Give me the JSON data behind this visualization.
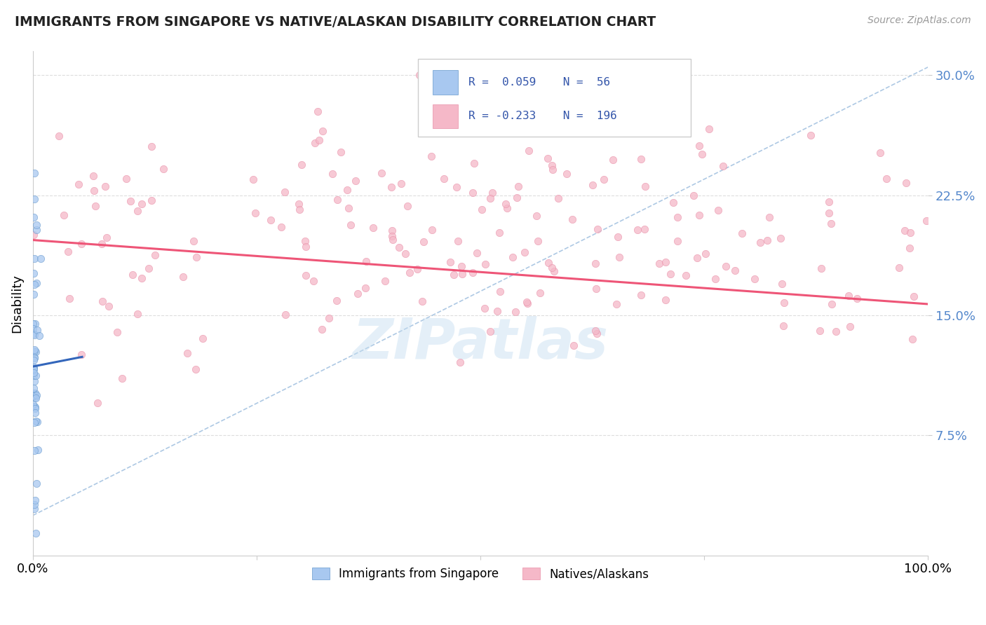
{
  "title": "IMMIGRANTS FROM SINGAPORE VS NATIVE/ALASKAN DISABILITY CORRELATION CHART",
  "source": "Source: ZipAtlas.com",
  "ylabel": "Disability",
  "xlim": [
    0.0,
    1.0
  ],
  "ylim": [
    0.0,
    0.315
  ],
  "yticks": [
    0.075,
    0.15,
    0.225,
    0.3
  ],
  "ytick_labels": [
    "7.5%",
    "15.0%",
    "22.5%",
    "30.0%"
  ],
  "xtick_labels": [
    "0.0%",
    "100.0%"
  ],
  "series_blue": {
    "name": "Immigrants from Singapore",
    "R": 0.059,
    "N": 56,
    "color": "#a8c8f0",
    "edge_color": "#6699cc",
    "size": 55
  },
  "series_pink": {
    "name": "Natives/Alaskans",
    "R": -0.233,
    "N": 196,
    "color": "#f5b8c8",
    "edge_color": "#e890a8",
    "size": 55
  },
  "trend_line_blue_color": "#3366bb",
  "trend_line_pink_color": "#ee5577",
  "trend_line_dashed_color": "#99bbdd",
  "watermark": "ZIPatlas",
  "watermark_color": "#c5ddf0",
  "background_color": "#ffffff",
  "grid_color": "#dddddd",
  "title_color": "#222222",
  "source_color": "#999999",
  "ytick_color": "#5588cc",
  "legend_r_color": "#3355aa"
}
